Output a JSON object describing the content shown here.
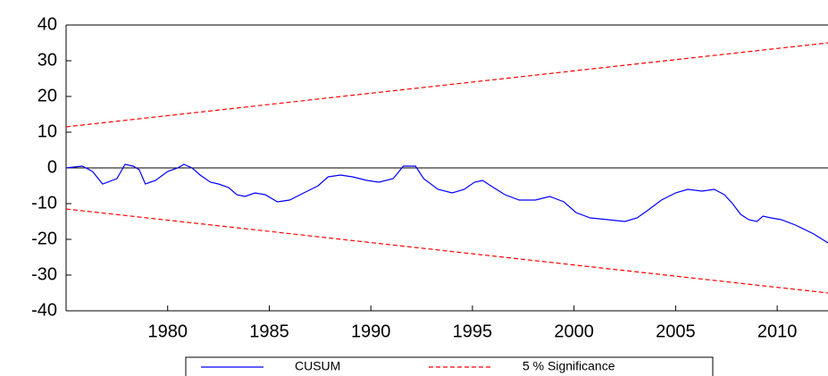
{
  "chart_data": {
    "type": "line",
    "xlim": [
      1975,
      2012.5
    ],
    "xticks": [
      1980,
      1985,
      1990,
      1995,
      2000,
      2005,
      2010
    ],
    "ylim": [
      -40,
      40
    ],
    "yticks": [
      -40,
      -30,
      -20,
      -10,
      0,
      10,
      20,
      30,
      40
    ],
    "zero_line": true,
    "series": [
      {
        "name": "CUSUM",
        "color": "#0000ff",
        "dash": false,
        "x": [
          1975,
          1975.8,
          1976.3,
          1976.8,
          1977.5,
          1977.9,
          1978.3,
          1978.6,
          1978.9,
          1979.4,
          1980,
          1980.5,
          1980.8,
          1981.2,
          1981.6,
          1982.1,
          1982.5,
          1983,
          1983.4,
          1983.8,
          1984.3,
          1984.8,
          1985.4,
          1986,
          1986.7,
          1987.4,
          1987.9,
          1988.5,
          1989.1,
          1989.8,
          1990.4,
          1991.1,
          1991.6,
          1992.2,
          1992.6,
          1993.3,
          1994,
          1994.6,
          1995.1,
          1995.5,
          1995.9,
          1996.6,
          1997.3,
          1998.1,
          1998.8,
          1999.5,
          2000.1,
          2000.8,
          2001.7,
          2002.5,
          2003.1,
          2003.6,
          2004.3,
          2005,
          2005.6,
          2006.3,
          2006.9,
          2007.4,
          2007.8,
          2008.2,
          2008.6,
          2009,
          2009.3,
          2009.7,
          2010.2,
          2010.9,
          2011.8,
          2012.5
        ],
        "values": [
          0,
          0.5,
          -1,
          -4.5,
          -3,
          1,
          0.5,
          -0.5,
          -4.5,
          -3.5,
          -1,
          0,
          1,
          0,
          -2,
          -4,
          -4.5,
          -5.5,
          -7.5,
          -8,
          -7,
          -7.5,
          -9.5,
          -9,
          -7,
          -5,
          -2.5,
          -2,
          -2.5,
          -3.5,
          -4,
          -3,
          0.5,
          0.5,
          -3,
          -6,
          -7,
          -6,
          -4,
          -3.5,
          -5,
          -7.5,
          -9,
          -9,
          -8,
          -9.5,
          -12.5,
          -14,
          -14.5,
          -15,
          -14,
          -12,
          -9,
          -7,
          -6,
          -6.5,
          -6,
          -7.5,
          -10,
          -13,
          -14.5,
          -15,
          -13.5,
          -14,
          -14.5,
          -16,
          -18.5,
          -21
        ]
      },
      {
        "name": "5 % Significance",
        "color": "#ff0000",
        "dash": true,
        "x": [
          1975,
          2012.5
        ],
        "values": [
          11.5,
          35
        ]
      },
      {
        "name": null,
        "color": "#ff0000",
        "dash": true,
        "x": [
          1975,
          2012.5
        ],
        "values": [
          -11.5,
          -35
        ]
      }
    ]
  }
}
